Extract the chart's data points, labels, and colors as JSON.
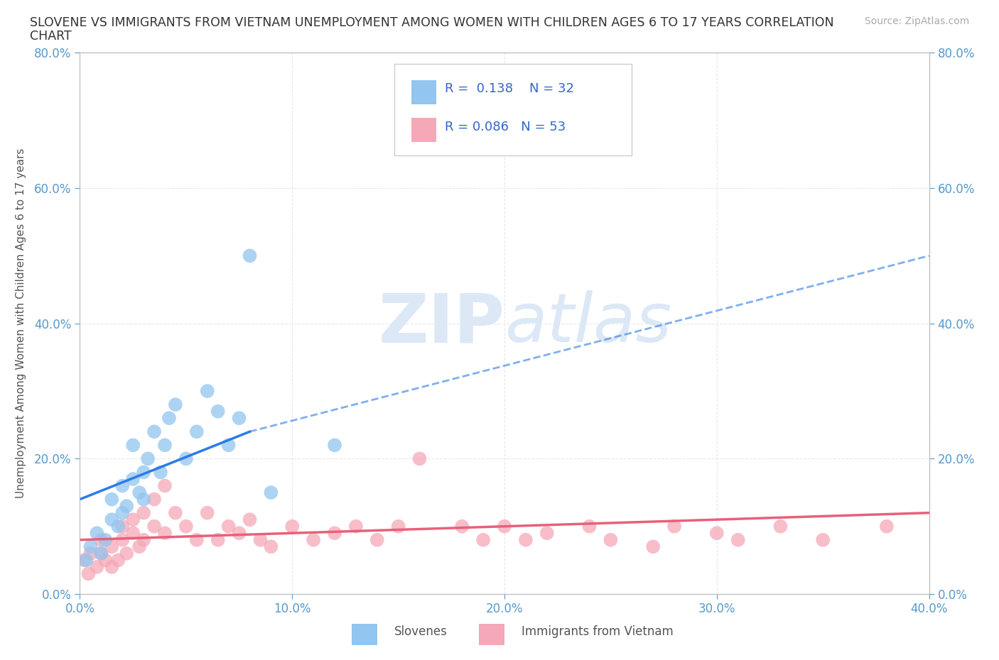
{
  "title_line1": "SLOVENE VS IMMIGRANTS FROM VIETNAM UNEMPLOYMENT AMONG WOMEN WITH CHILDREN AGES 6 TO 17 YEARS CORRELATION",
  "title_line2": "CHART",
  "source": "Source: ZipAtlas.com",
  "ylabel": "Unemployment Among Women with Children Ages 6 to 17 years",
  "xlim": [
    0,
    40
  ],
  "ylim": [
    0,
    80
  ],
  "xticks": [
    0,
    10,
    20,
    30,
    40
  ],
  "yticks": [
    0,
    20,
    40,
    60,
    80
  ],
  "xtick_labels": [
    "0.0%",
    "10.0%",
    "20.0%",
    "30.0%",
    "40.0%"
  ],
  "ytick_labels": [
    "0.0%",
    "20.0%",
    "40.0%",
    "60.0%",
    "80.0%"
  ],
  "slovene_color": "#92c5f0",
  "vietnam_color": "#f5a8b8",
  "slovene_R": 0.138,
  "slovene_N": 32,
  "vietnam_R": 0.086,
  "vietnam_N": 53,
  "slovene_scatter_x": [
    0.3,
    0.5,
    0.8,
    1.0,
    1.2,
    1.5,
    1.5,
    1.8,
    2.0,
    2.0,
    2.2,
    2.5,
    2.5,
    2.8,
    3.0,
    3.0,
    3.2,
    3.5,
    3.8,
    4.0,
    4.2,
    4.5,
    5.0,
    5.5,
    6.0,
    6.5,
    7.0,
    7.5,
    8.0,
    9.0,
    12.0,
    16.0
  ],
  "slovene_scatter_y": [
    5,
    7,
    9,
    6,
    8,
    11,
    14,
    10,
    12,
    16,
    13,
    17,
    22,
    15,
    18,
    14,
    20,
    24,
    18,
    22,
    26,
    28,
    20,
    24,
    30,
    27,
    22,
    26,
    50,
    15,
    22,
    70
  ],
  "vietnam_scatter_x": [
    0.2,
    0.4,
    0.5,
    0.8,
    1.0,
    1.0,
    1.2,
    1.5,
    1.5,
    1.8,
    2.0,
    2.0,
    2.2,
    2.5,
    2.5,
    2.8,
    3.0,
    3.0,
    3.5,
    3.5,
    4.0,
    4.0,
    4.5,
    5.0,
    5.5,
    6.0,
    6.5,
    7.0,
    7.5,
    8.0,
    8.5,
    9.0,
    10.0,
    11.0,
    12.0,
    13.0,
    14.0,
    15.0,
    16.0,
    18.0,
    19.0,
    20.0,
    21.0,
    22.0,
    24.0,
    25.0,
    27.0,
    28.0,
    30.0,
    31.0,
    33.0,
    35.0,
    38.0
  ],
  "vietnam_scatter_y": [
    5,
    3,
    6,
    4,
    6,
    8,
    5,
    4,
    7,
    5,
    8,
    10,
    6,
    9,
    11,
    7,
    12,
    8,
    10,
    14,
    9,
    16,
    12,
    10,
    8,
    12,
    8,
    10,
    9,
    11,
    8,
    7,
    10,
    8,
    9,
    10,
    8,
    10,
    20,
    10,
    8,
    10,
    8,
    9,
    10,
    8,
    7,
    10,
    9,
    8,
    10,
    8,
    10
  ],
  "background_color": "#ffffff",
  "grid_color": "#e8e8e8",
  "watermark_color": "#dce8f5",
  "slovene_line_color": "#2c7be5",
  "vietnam_line_color": "#e8607a",
  "slovene_line_x0": 0,
  "slovene_line_y0": 14,
  "slovene_line_x1": 8,
  "slovene_line_y1": 24,
  "slovene_dash_x0": 8,
  "slovene_dash_y0": 24,
  "slovene_dash_x1": 40,
  "slovene_dash_y1": 50,
  "vietnam_line_x0": 0,
  "vietnam_line_y0": 8,
  "vietnam_line_x1": 40,
  "vietnam_line_y1": 12
}
